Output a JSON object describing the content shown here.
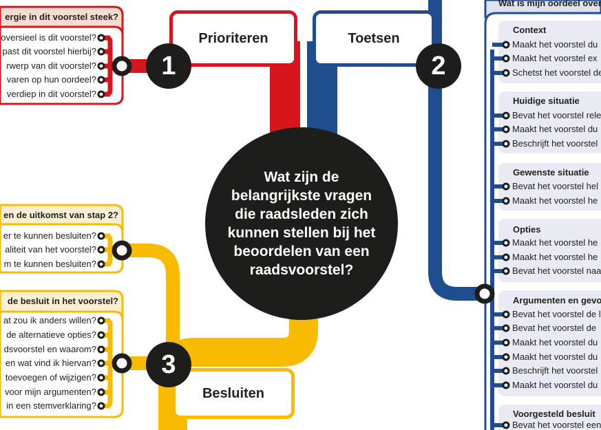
{
  "colors": {
    "red": "#d6161c",
    "blue": "#1f4e8f",
    "yellow": "#f8bb00",
    "black": "#1d1d1b",
    "red_header": "#f8dcd2",
    "yellow_header": "#fdf0d2",
    "blue_header": "#dfe1ef",
    "group_bg": "#e9eaf3"
  },
  "center_question": "Wat zijn de belangrijkste vragen die raadsleden zich kunnen stellen bij het beoordelen van een raadsvoorstel?",
  "stages": [
    {
      "number": "1",
      "label": "Prioriteren"
    },
    {
      "number": "2",
      "label": "Toetsen"
    },
    {
      "number": "3",
      "label": "Besluiten"
    }
  ],
  "red_box": {
    "header": "ergie in dit voorstel steek?",
    "items": [
      "oversieel is dit voorstel?",
      "past dit voorstel hierbij?",
      "rwerp van dit voorstel?",
      "varen op hun oordeel?",
      "verdiep in dit voorstel?"
    ]
  },
  "yellow_box_1": {
    "header": "en de uitkomst van stap 2?",
    "items": [
      "er te kunnen besluiten?",
      "aliteit van het voorstel?",
      "m te kunnen besluiten?"
    ]
  },
  "yellow_box_2": {
    "header": "de besluit in het voorstel?",
    "items": [
      "at zou ik anders willen?",
      "de alternatieve opties?",
      "dsvoorstel en waarom?",
      "en wat vind ik hiervan?",
      "toevoegen of wijzigen?",
      "voor mijn argumenten?",
      "in een stemverklaring?"
    ]
  },
  "blue_box": {
    "header": "Wat is mijn oordeel over",
    "groups": [
      {
        "title": "Context",
        "items": [
          "Maakt het voorstel du",
          "Maakt het voorstel ex",
          "Schetst het voorstel de"
        ]
      },
      {
        "title": "Huidige situatie",
        "items": [
          "Bevat het voorstel rele",
          "Maakt het voorstel du",
          "Beschrijft het voorstel"
        ]
      },
      {
        "title": "Gewenste situatie",
        "items": [
          "Bevat het voorstel hel",
          "Maakt het voorstel he"
        ]
      },
      {
        "title": "Opties",
        "items": [
          "Maakt het voorstel he",
          "Maakt het voorstel he",
          "Bevat het voorstel naa"
        ]
      },
      {
        "title": "Argumenten en gevol",
        "items": [
          "Bevat het voorstel de l",
          "Bevat het voorstel de",
          "Maakt het voorstel du",
          "Maakt het voorstel du",
          "Beschrijft het voorstel",
          "Maakt het voorstel du"
        ]
      },
      {
        "title": "Voorgesteld besluit",
        "items": [
          "Bevat het voorstel een"
        ]
      }
    ]
  }
}
